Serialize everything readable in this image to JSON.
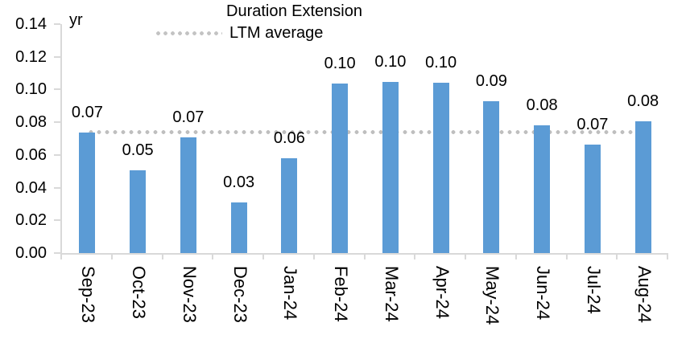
{
  "chart_data": {
    "type": "bar",
    "title": "",
    "unit_label": "yr",
    "categories": [
      "Sep-23",
      "Oct-23",
      "Nov-23",
      "Dec-23",
      "Jan-24",
      "Feb-24",
      "Mar-24",
      "Apr-24",
      "May-24",
      "Jun-24",
      "Jul-24",
      "Aug-24"
    ],
    "series": [
      {
        "name": "Duration Extension",
        "values": [
          0.0737,
          0.0506,
          0.0707,
          0.031,
          0.058,
          0.1035,
          0.1045,
          0.104,
          0.0928,
          0.0781,
          0.0663,
          0.0806
        ],
        "data_labels": [
          "0.07",
          "0.05",
          "0.07",
          "0.03",
          "0.06",
          "0.10",
          "0.10",
          "0.10",
          "0.09",
          "0.08",
          "0.07",
          "0.08"
        ],
        "color": "#5B9BD5"
      }
    ],
    "reference_line": {
      "name": "LTM average",
      "value": 0.0742,
      "style": "dotted",
      "color": "#BFBFBF"
    },
    "y_axis": {
      "min": 0,
      "max": 0.14,
      "step": 0.02,
      "tick_labels": [
        "0.00",
        "0.02",
        "0.04",
        "0.06",
        "0.08",
        "0.10",
        "0.12",
        "0.14"
      ]
    },
    "legend": {
      "position": "top",
      "entries": [
        "Duration Extension",
        "LTM average"
      ]
    },
    "grid": false,
    "axis_color": "#D9D9D9",
    "text_color": "#000000"
  }
}
